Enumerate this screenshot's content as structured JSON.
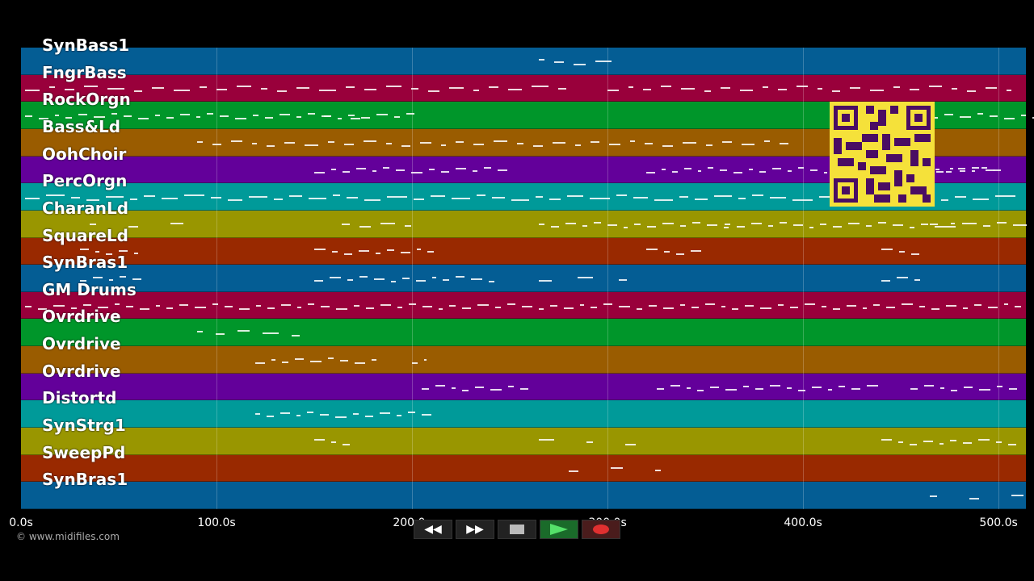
{
  "tracks": [
    {
      "name": "SynBass1",
      "color": "#045d94"
    },
    {
      "name": "FngrBass",
      "color": "#99003b"
    },
    {
      "name": "RockOrgn",
      "color": "#00962a"
    },
    {
      "name": "Bass&Ld",
      "color": "#9a5c00"
    },
    {
      "name": "OohChoir",
      "color": "#63009a"
    },
    {
      "name": "PercOrgn",
      "color": "#009a99"
    },
    {
      "name": "CharanLd",
      "color": "#999600"
    },
    {
      "name": "SquareLd",
      "color": "#992900"
    },
    {
      "name": "SynBras1",
      "color": "#045d94"
    },
    {
      "name": "GM Drums",
      "color": "#99003b"
    },
    {
      "name": "Ovrdrive",
      "color": "#00962a"
    },
    {
      "name": "Ovrdrive",
      "color": "#9a5c00"
    },
    {
      "name": "Ovrdrive",
      "color": "#63009a"
    },
    {
      "name": "Distortd",
      "color": "#009a99"
    },
    {
      "name": "SynStrg1",
      "color": "#999600"
    },
    {
      "name": "SweepPd",
      "color": "#992900"
    },
    {
      "name": "SynBras1",
      "color": "#045d94"
    }
  ],
  "timeline": {
    "ticks": [
      "0.0s",
      "100.0s",
      "200.0s",
      "300.0s",
      "400.0s",
      "500.0s"
    ],
    "tick_values": [
      0,
      100,
      200,
      300,
      400,
      500
    ],
    "max_seconds": 514
  },
  "copyright": "© www.midifiles.com",
  "transport": {
    "rewind_label": "◀◀",
    "forward_label": "▶▶"
  }
}
